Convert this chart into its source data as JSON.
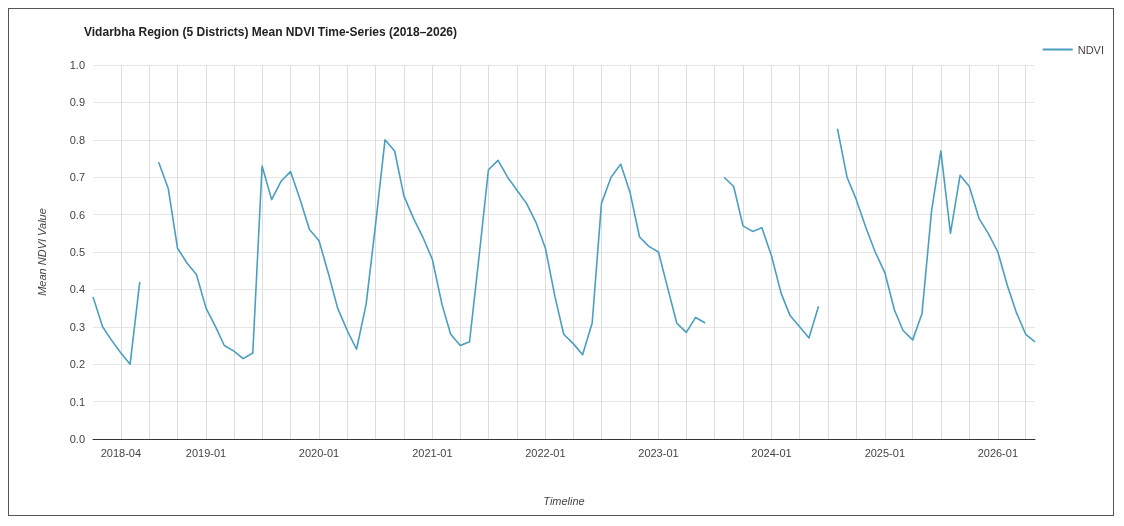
{
  "chart_data": {
    "type": "line",
    "title": "Vidarbha Region (5 Districts) Mean NDVI Time-Series (2018–2026)",
    "xlabel": "Timeline",
    "ylabel": "Mean NDVI Value",
    "x": [
      "2018-01",
      "2018-02",
      "2018-03",
      "2018-04",
      "2018-05",
      "2018-06",
      "2018-07",
      "2018-08",
      "2018-09",
      "2018-10",
      "2018-11",
      "2018-12",
      "2019-01",
      "2019-02",
      "2019-03",
      "2019-04",
      "2019-05",
      "2019-06",
      "2019-07",
      "2019-08",
      "2019-09",
      "2019-10",
      "2019-11",
      "2019-12",
      "2020-01",
      "2020-02",
      "2020-03",
      "2020-04",
      "2020-05",
      "2020-06",
      "2020-07",
      "2020-08",
      "2020-09",
      "2020-10",
      "2020-11",
      "2020-12",
      "2021-01",
      "2021-02",
      "2021-03",
      "2021-04",
      "2021-05",
      "2021-06",
      "2021-07",
      "2021-08",
      "2021-09",
      "2021-10",
      "2021-11",
      "2021-12",
      "2022-01",
      "2022-02",
      "2022-03",
      "2022-04",
      "2022-05",
      "2022-06",
      "2022-07",
      "2022-08",
      "2022-09",
      "2022-10",
      "2022-11",
      "2022-12",
      "2023-01",
      "2023-02",
      "2023-03",
      "2023-04",
      "2023-05",
      "2023-06",
      "2023-07",
      "2023-08",
      "2023-09",
      "2023-10",
      "2023-11",
      "2023-12",
      "2024-01",
      "2024-02",
      "2024-03",
      "2024-04",
      "2024-05",
      "2024-06",
      "2024-07",
      "2024-08",
      "2024-09",
      "2024-10",
      "2024-11",
      "2024-12",
      "2025-01",
      "2025-02",
      "2025-03",
      "2025-04",
      "2025-05",
      "2025-06",
      "2025-07",
      "2025-08",
      "2025-09",
      "2025-10",
      "2025-11",
      "2025-12",
      "2026-01",
      "2026-02",
      "2026-03",
      "2026-04",
      "2026-05"
    ],
    "series": [
      {
        "name": "NDVI",
        "color": "#4a9fc0",
        "values": [
          0.38,
          0.3,
          0.265,
          0.23,
          0.2,
          0.42,
          null,
          0.74,
          0.67,
          0.51,
          0.47,
          0.44,
          0.35,
          0.3,
          0.25,
          0.235,
          0.215,
          0.23,
          0.73,
          0.64,
          0.69,
          0.715,
          0.64,
          0.56,
          0.53,
          0.44,
          0.35,
          0.29,
          0.24,
          0.36,
          0.57,
          0.8,
          0.77,
          0.65,
          0.59,
          0.54,
          0.48,
          0.36,
          0.28,
          0.25,
          0.26,
          0.49,
          0.72,
          0.745,
          0.7,
          0.665,
          0.63,
          0.58,
          0.51,
          0.38,
          0.28,
          0.255,
          0.225,
          0.31,
          0.63,
          0.7,
          0.735,
          0.66,
          0.54,
          0.515,
          0.5,
          0.4,
          0.31,
          0.285,
          0.325,
          0.31,
          null,
          0.7,
          0.675,
          0.57,
          0.555,
          0.565,
          0.49,
          0.39,
          0.33,
          0.3,
          0.27,
          0.355,
          null,
          0.83,
          0.7,
          0.64,
          0.565,
          0.5,
          0.445,
          0.345,
          0.29,
          0.265,
          0.335,
          0.61,
          0.77,
          0.55,
          0.705,
          0.675,
          0.59,
          0.55,
          0.5,
          0.41,
          0.34,
          0.28,
          0.26
        ]
      }
    ],
    "xlim": [
      "2018-01",
      "2026-05"
    ],
    "xticks": [
      {
        "value": "2018-04",
        "label": "2018-04"
      },
      {
        "value": "2018-07",
        "label": null
      },
      {
        "value": "2018-10",
        "label": null
      },
      {
        "value": "2019-01",
        "label": "2019-01"
      },
      {
        "value": "2019-04",
        "label": null
      },
      {
        "value": "2019-07",
        "label": null
      },
      {
        "value": "2019-10",
        "label": null
      },
      {
        "value": "2020-01",
        "label": "2020-01"
      },
      {
        "value": "2020-04",
        "label": null
      },
      {
        "value": "2020-07",
        "label": null
      },
      {
        "value": "2020-10",
        "label": null
      },
      {
        "value": "2021-01",
        "label": "2021-01"
      },
      {
        "value": "2021-04",
        "label": null
      },
      {
        "value": "2021-07",
        "label": null
      },
      {
        "value": "2021-10",
        "label": null
      },
      {
        "value": "2022-01",
        "label": "2022-01"
      },
      {
        "value": "2022-04",
        "label": null
      },
      {
        "value": "2022-07",
        "label": null
      },
      {
        "value": "2022-10",
        "label": null
      },
      {
        "value": "2023-01",
        "label": "2023-01"
      },
      {
        "value": "2023-04",
        "label": null
      },
      {
        "value": "2023-07",
        "label": null
      },
      {
        "value": "2023-10",
        "label": null
      },
      {
        "value": "2024-01",
        "label": "2024-01"
      },
      {
        "value": "2024-04",
        "label": null
      },
      {
        "value": "2024-07",
        "label": null
      },
      {
        "value": "2024-10",
        "label": null
      },
      {
        "value": "2025-01",
        "label": "2025-01"
      },
      {
        "value": "2025-04",
        "label": null
      },
      {
        "value": "2025-07",
        "label": null
      },
      {
        "value": "2025-10",
        "label": null
      },
      {
        "value": "2026-01",
        "label": "2026-01"
      },
      {
        "value": "2026-04",
        "label": null
      }
    ],
    "ylim": [
      0,
      1
    ],
    "yticks": [
      {
        "value": 0,
        "label": "0.0"
      },
      {
        "value": 0.1,
        "label": "0.1"
      },
      {
        "value": 0.2,
        "label": "0.2"
      },
      {
        "value": 0.3,
        "label": "0.3"
      },
      {
        "value": 0.4,
        "label": "0.4"
      },
      {
        "value": 0.5,
        "label": "0.5"
      },
      {
        "value": 0.6,
        "label": "0.6"
      },
      {
        "value": 0.7,
        "label": "0.7"
      },
      {
        "value": 0.8,
        "label": "0.8"
      },
      {
        "value": 0.9,
        "label": "0.9"
      },
      {
        "value": 1,
        "label": "1.0"
      }
    ],
    "grid": true,
    "legend": "top right",
    "marker": "none",
    "line_style": "solid"
  }
}
